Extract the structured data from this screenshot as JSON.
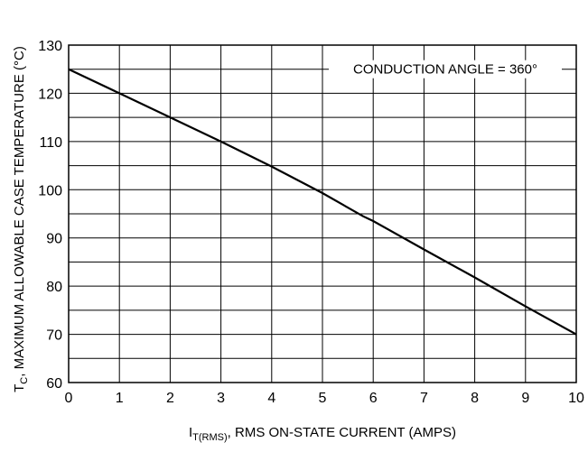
{
  "chart_data": {
    "type": "line",
    "title": "",
    "xlabel": {
      "prefix": "I",
      "subscript": "T(RMS)",
      "rest": ", RMS ON-STATE CURRENT (AMPS)"
    },
    "ylabel": {
      "prefix": "T",
      "subscript": "C",
      "rest": ", MAXIMUM ALLOWABLE CASE TEMPERATURE (°C)"
    },
    "xlim": [
      0,
      10
    ],
    "ylim": [
      60,
      130
    ],
    "x_ticks": [
      0,
      1,
      2,
      3,
      4,
      5,
      6,
      7,
      8,
      9,
      10
    ],
    "y_ticks": [
      60,
      70,
      80,
      90,
      100,
      110,
      120,
      130
    ],
    "grid": true,
    "annotation": "CONDUCTION ANGLE = 360°",
    "series": [
      {
        "x": [
          0,
          1,
          2,
          3,
          4,
          5,
          5.8,
          6,
          7,
          8,
          9,
          10
        ],
        "y": [
          125,
          120,
          115,
          110,
          104.8,
          99.3,
          94.5,
          93.5,
          87.6,
          81.8,
          75.8,
          70
        ]
      }
    ]
  }
}
